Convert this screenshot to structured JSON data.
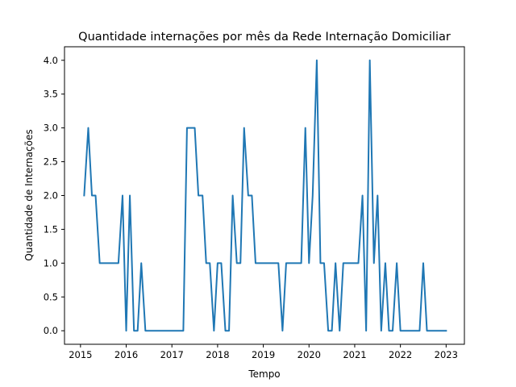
{
  "chart_data": {
    "type": "line",
    "title": "Quantidade internações por mês da Rede Internação Domiciliar",
    "xlabel": "Tempo",
    "ylabel": "Quantidade de Internações",
    "xlim": [
      2014.65,
      2023.4
    ],
    "ylim": [
      -0.2,
      4.2
    ],
    "x_ticks": [
      2015,
      2016,
      2017,
      2018,
      2019,
      2020,
      2021,
      2022,
      2023
    ],
    "y_ticks": [
      0.0,
      0.5,
      1.0,
      1.5,
      2.0,
      2.5,
      3.0,
      3.5,
      4.0
    ],
    "x_tick_labels": [
      "2015",
      "2016",
      "2017",
      "2018",
      "2019",
      "2020",
      "2021",
      "2022",
      "2023"
    ],
    "y_tick_labels": [
      "0.0",
      "0.5",
      "1.0",
      "1.5",
      "2.0",
      "2.5",
      "3.0",
      "3.5",
      "4.0"
    ],
    "grid": false,
    "legend": false,
    "color": "#1f77b4",
    "series": [
      {
        "x": [
          2015.08,
          2015.17,
          2015.25,
          2015.33,
          2015.42,
          2015.5,
          2015.58,
          2015.67,
          2015.75,
          2015.83,
          2015.92,
          2016.0,
          2016.08,
          2016.17,
          2016.25,
          2016.33,
          2016.42,
          2016.5,
          2016.58,
          2016.67,
          2016.75,
          2016.83,
          2016.92,
          2017.0,
          2017.08,
          2017.17,
          2017.25,
          2017.33,
          2017.42,
          2017.5,
          2017.58,
          2017.67,
          2017.75,
          2017.83,
          2017.92,
          2018.0,
          2018.08,
          2018.17,
          2018.25,
          2018.33,
          2018.42,
          2018.5,
          2018.58,
          2018.67,
          2018.75,
          2018.83,
          2018.92,
          2019.0,
          2019.08,
          2019.17,
          2019.25,
          2019.33,
          2019.42,
          2019.5,
          2019.58,
          2019.67,
          2019.75,
          2019.83,
          2019.92,
          2020.0,
          2020.08,
          2020.17,
          2020.25,
          2020.33,
          2020.42,
          2020.5,
          2020.58,
          2020.67,
          2020.75,
          2020.83,
          2020.92,
          2021.0,
          2021.08,
          2021.17,
          2021.25,
          2021.33,
          2021.42,
          2021.5,
          2021.58,
          2021.67,
          2021.75,
          2021.83,
          2021.92,
          2022.0,
          2022.08,
          2022.17,
          2022.25,
          2022.33,
          2022.42,
          2022.5,
          2022.58,
          2022.67,
          2022.75,
          2022.83,
          2022.92,
          2023.0
        ],
        "values": [
          2,
          3,
          2,
          2,
          1,
          1,
          1,
          1,
          1,
          1,
          2,
          0,
          2,
          0,
          0,
          1,
          0,
          0,
          0,
          0,
          0,
          0,
          0,
          0,
          0,
          0,
          0,
          3,
          3,
          3,
          2,
          2,
          1,
          1,
          0,
          1,
          1,
          0,
          0,
          2,
          1,
          1,
          3,
          2,
          2,
          1,
          1,
          1,
          1,
          1,
          1,
          1,
          0,
          1,
          1,
          1,
          1,
          1,
          3,
          1,
          2,
          4,
          1,
          1,
          0,
          0,
          1,
          0,
          1,
          1,
          1,
          1,
          1,
          2,
          0,
          4,
          1,
          2,
          0,
          1,
          0,
          0,
          1,
          0,
          0,
          0,
          0,
          0,
          0,
          1,
          0,
          0,
          0,
          0,
          0,
          0
        ]
      }
    ]
  }
}
